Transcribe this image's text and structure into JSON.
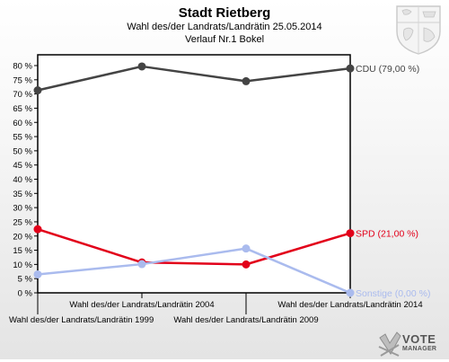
{
  "header": {
    "title": "Stadt Rietberg",
    "subtitle1": "Wahl des/der Landrats/Landrätin 25.05.2014",
    "subtitle2": "Verlauf Nr.1 Bokel"
  },
  "logo": {
    "line1": "VOTE",
    "line2": "MANAGER"
  },
  "chart_data": {
    "type": "line",
    "title": "Stadt Rietberg",
    "categories": [
      "Wahl des/der Landrats/Landrätin 1999",
      "Wahl des/der Landrats/Landrätin 2004",
      "Wahl des/der Landrats/Landrätin 2009",
      "Wahl des/der Landrats/Landrätin 2014"
    ],
    "ylim": [
      0,
      80
    ],
    "yticks": [
      0,
      5,
      10,
      15,
      20,
      25,
      30,
      35,
      40,
      45,
      50,
      55,
      60,
      65,
      70,
      75,
      80
    ],
    "ytick_suffix": " %",
    "grid": false,
    "series": [
      {
        "name": "CDU",
        "end_label": "CDU (79,00 %)",
        "color": "#444444",
        "values": [
          71.3,
          79.7,
          74.5,
          79.0
        ]
      },
      {
        "name": "SPD",
        "end_label": "SPD (21,00 %)",
        "color": "#e2001a",
        "values": [
          22.4,
          10.7,
          10.0,
          21.0
        ]
      },
      {
        "name": "Sonstige",
        "end_label": "Sonstige (0,00 %)",
        "color": "#aabbee",
        "values": [
          6.5,
          10.1,
          15.6,
          0.0
        ]
      }
    ]
  }
}
